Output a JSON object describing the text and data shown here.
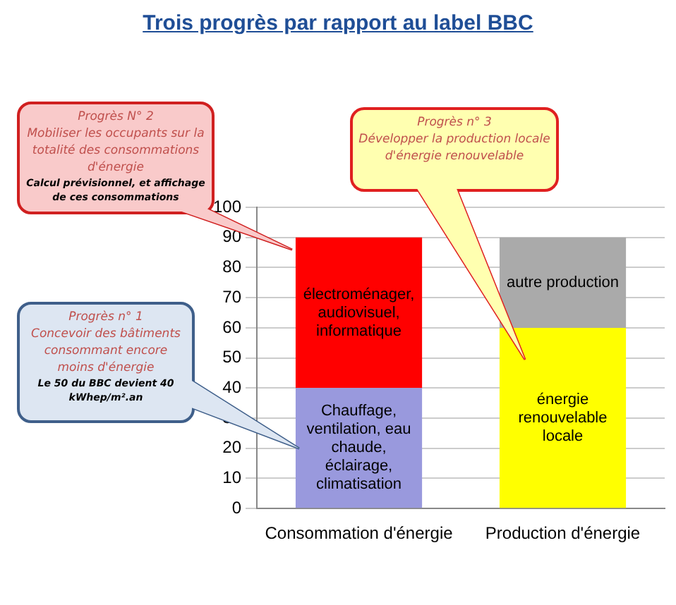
{
  "chart_data": {
    "type": "bar",
    "title": "Trois progrès par rapport au label BBC",
    "categories": [
      "Consommation d'énergie",
      "Production d'énergie"
    ],
    "stacked": true,
    "series": [
      {
        "name": "Chauffage, ventilation, eau chaude, éclairage, climatisation",
        "color": "#9999dd",
        "values": [
          40,
          null
        ]
      },
      {
        "name": "électroménager, audiovisuel, informatique",
        "color": "#ff0000",
        "values": [
          50,
          null
        ]
      },
      {
        "name": "énergie renouvelable locale",
        "color": "#ffff00",
        "values": [
          null,
          60
        ]
      },
      {
        "name": "autre production",
        "color": "#aaaaaa",
        "values": [
          null,
          30
        ]
      }
    ],
    "ylim": [
      0,
      100
    ],
    "yticks": [
      0,
      10,
      20,
      30,
      40,
      50,
      60,
      70,
      80,
      90,
      100
    ],
    "grid": "y",
    "legend": false,
    "annotations": [
      "Progrès N° 2\nMobiliser les occupants sur la totalité des consommations d'énergie",
      "Calcul prévisionnel, et affichage de ces consommations",
      "Progrès n° 3\nDévelopper la production locale d'énergie renouvelable",
      "Progrès n° 1\nConcevoir des bâtiments consommant encore moins d'énergie",
      "Le 50 du BBC devient 40 kWhep/m².an"
    ]
  }
}
